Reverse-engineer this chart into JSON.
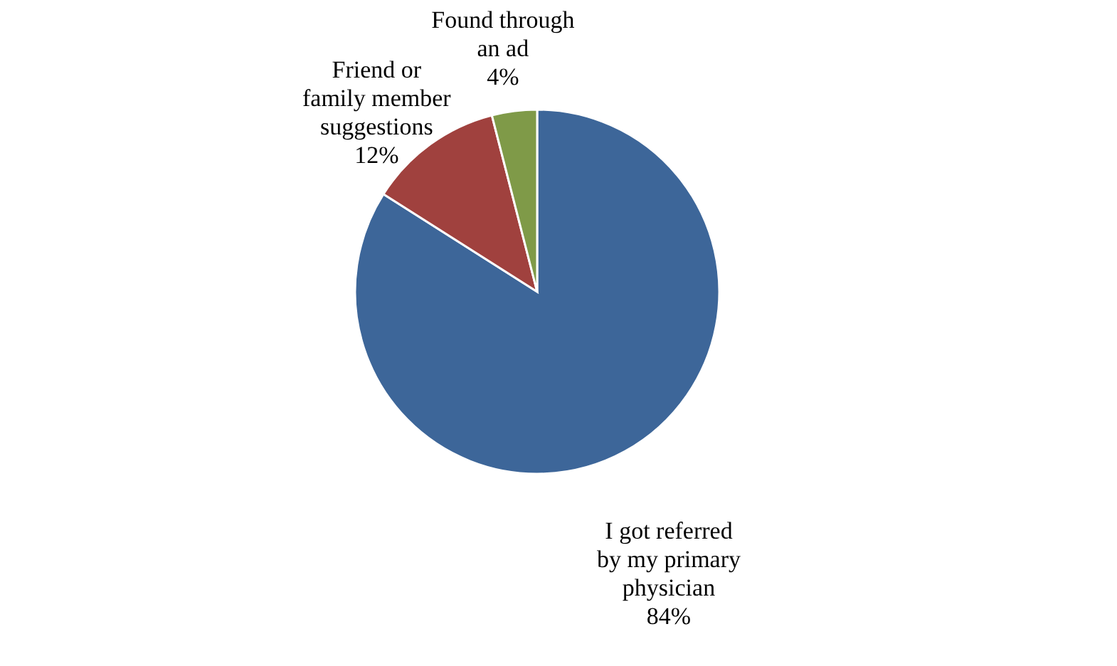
{
  "chart_data": {
    "type": "pie",
    "categories": [
      "I got referred by my primary physician",
      "Friend or family member suggestions",
      "Found through an ad"
    ],
    "values": [
      84,
      12,
      4
    ],
    "value_labels": [
      "84%",
      "12%",
      "4%"
    ],
    "colors": [
      "#3d6699",
      "#a0413e",
      "#7f9a48"
    ],
    "legend": false
  }
}
